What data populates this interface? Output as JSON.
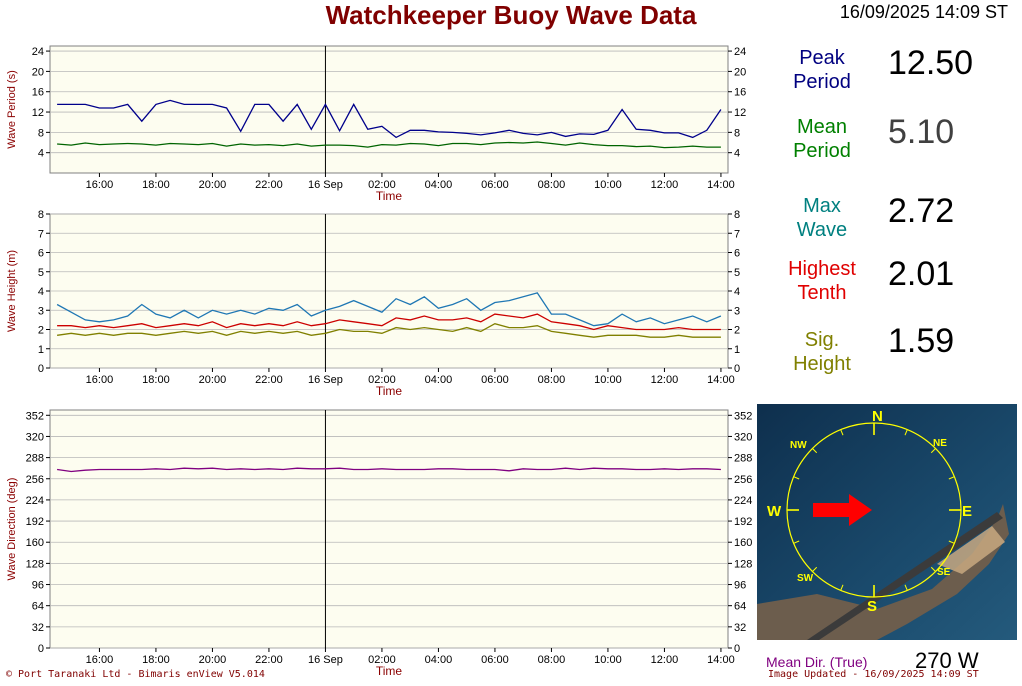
{
  "header": {
    "title": "Watchkeeper Buoy Wave Data",
    "timestamp": "16/09/2025 14:09 ST"
  },
  "stats": [
    {
      "label_line1": "Peak",
      "label_line2": "Period",
      "value": "12.50",
      "color": "#000080"
    },
    {
      "label_line1": "Mean",
      "label_line2": "Period",
      "value": "5.10",
      "color": "#008000"
    },
    {
      "label_line1": "Max",
      "label_line2": "Wave",
      "value": "2.72",
      "color": "#008080"
    },
    {
      "label_line1": "Highest",
      "label_line2": "Tenth",
      "value": "2.01",
      "color": "#e00000"
    },
    {
      "label_line1": "Sig.",
      "label_line2": "Height",
      "value": "1.59",
      "color": "#808000"
    }
  ],
  "compass": {
    "north": "N",
    "south": "S",
    "east": "E",
    "west": "W",
    "ne": "NE",
    "nw": "NW",
    "se": "SE",
    "sw": "SW",
    "arrow_direction_deg": 270,
    "ring_color": "#ffff00",
    "arrow_color": "#ff0000"
  },
  "mean_direction": {
    "label": "Mean Dir. (True)",
    "value": "270 W"
  },
  "footer": {
    "copyright": "© Port Taranaki Ltd - Bimaris enView V5.014",
    "updated": "Image Updated - 16/09/2025 14:09 ST"
  },
  "chart_data": [
    {
      "type": "line",
      "ylabel": "Wave Period (s)",
      "xlabel": "Time",
      "ylim": [
        0,
        25
      ],
      "yticks": [
        4,
        8,
        12,
        16,
        20,
        24
      ],
      "x_tick_labels": [
        "16:00",
        "18:00",
        "20:00",
        "22:00",
        "16 Sep",
        "02:00",
        "04:00",
        "06:00",
        "08:00",
        "10:00",
        "12:00",
        "14:00"
      ],
      "xlim": [
        14.25,
        38.25
      ],
      "x_tick_positions": [
        16,
        18,
        20,
        22,
        24,
        26,
        28,
        30,
        32,
        34,
        36,
        38
      ],
      "day_marker_x": 24,
      "series": [
        {
          "color": "#00008b",
          "x": [
            14.5,
            15,
            15.5,
            16,
            16.5,
            17,
            17.5,
            18,
            18.5,
            19,
            19.5,
            20,
            20.5,
            21,
            21.5,
            22,
            22.5,
            23,
            23.5,
            24,
            24.5,
            25,
            25.5,
            26,
            26.5,
            27,
            27.5,
            28,
            28.5,
            29,
            29.5,
            30,
            30.5,
            31,
            31.5,
            32,
            32.5,
            33,
            33.5,
            34,
            34.5,
            35,
            35.5,
            36,
            36.5,
            37,
            37.5,
            38
          ],
          "values": [
            13.5,
            13.5,
            13.5,
            12.8,
            12.8,
            13.5,
            10.2,
            13.5,
            14.3,
            13.5,
            13.5,
            13.5,
            12.8,
            8.2,
            13.5,
            13.5,
            10.2,
            13.5,
            8.6,
            13.5,
            8.3,
            13.5,
            8.6,
            9.2,
            7.0,
            8.4,
            8.4,
            8.1,
            8.0,
            7.8,
            7.5,
            7.9,
            8.4,
            7.8,
            7.5,
            8.0,
            7.2,
            7.7,
            7.6,
            8.4,
            12.5,
            8.6,
            8.4,
            7.9,
            7.9,
            7.0,
            8.4,
            12.5
          ]
        },
        {
          "color": "#006400",
          "x": [
            14.5,
            15,
            15.5,
            16,
            16.5,
            17,
            17.5,
            18,
            18.5,
            19,
            19.5,
            20,
            20.5,
            21,
            21.5,
            22,
            22.5,
            23,
            23.5,
            24,
            24.5,
            25,
            25.5,
            26,
            26.5,
            27,
            27.5,
            28,
            28.5,
            29,
            29.5,
            30,
            30.5,
            31,
            31.5,
            32,
            32.5,
            33,
            33.5,
            34,
            34.5,
            35,
            35.5,
            36,
            36.5,
            37,
            37.5,
            38
          ],
          "values": [
            5.7,
            5.5,
            5.9,
            5.6,
            5.7,
            5.8,
            5.7,
            5.5,
            5.8,
            5.7,
            5.6,
            5.8,
            5.3,
            5.7,
            5.5,
            5.6,
            5.4,
            5.7,
            5.3,
            5.5,
            5.5,
            5.4,
            5.1,
            5.6,
            5.5,
            5.8,
            5.7,
            5.4,
            5.8,
            5.8,
            5.6,
            5.9,
            6.0,
            5.9,
            6.1,
            5.8,
            5.5,
            5.9,
            5.6,
            5.4,
            5.4,
            5.2,
            5.3,
            5.0,
            5.1,
            5.3,
            5.1,
            5.1
          ]
        }
      ]
    },
    {
      "type": "line",
      "ylabel": "Wave Height (m)",
      "xlabel": "Time",
      "ylim": [
        0,
        8
      ],
      "yticks": [
        0,
        1,
        2,
        3,
        4,
        5,
        6,
        7,
        8
      ],
      "x_tick_labels": [
        "16:00",
        "18:00",
        "20:00",
        "22:00",
        "16 Sep",
        "02:00",
        "04:00",
        "06:00",
        "08:00",
        "10:00",
        "12:00",
        "14:00"
      ],
      "xlim": [
        14.25,
        38.25
      ],
      "x_tick_positions": [
        16,
        18,
        20,
        22,
        24,
        26,
        28,
        30,
        32,
        34,
        36,
        38
      ],
      "day_marker_x": 24,
      "series": [
        {
          "color": "#1f77b4",
          "x": [
            14.5,
            15,
            15.5,
            16,
            16.5,
            17,
            17.5,
            18,
            18.5,
            19,
            19.5,
            20,
            20.5,
            21,
            21.5,
            22,
            22.5,
            23,
            23.5,
            24,
            24.5,
            25,
            25.5,
            26,
            26.5,
            27,
            27.5,
            28,
            28.5,
            29,
            29.5,
            30,
            30.5,
            31,
            31.5,
            32,
            32.5,
            33,
            33.5,
            34,
            34.5,
            35,
            35.5,
            36,
            36.5,
            37,
            37.5,
            38
          ],
          "values": [
            3.3,
            2.9,
            2.5,
            2.4,
            2.5,
            2.7,
            3.3,
            2.8,
            2.6,
            3.0,
            2.6,
            3.0,
            2.8,
            3.0,
            2.8,
            3.1,
            3.0,
            3.3,
            2.7,
            3.0,
            3.2,
            3.5,
            3.2,
            2.9,
            3.6,
            3.3,
            3.7,
            3.1,
            3.3,
            3.6,
            3.0,
            3.4,
            3.5,
            3.7,
            3.9,
            2.8,
            2.8,
            2.5,
            2.2,
            2.3,
            2.8,
            2.4,
            2.6,
            2.3,
            2.5,
            2.7,
            2.4,
            2.7
          ]
        },
        {
          "color": "#cc0000",
          "x": [
            14.5,
            15,
            15.5,
            16,
            16.5,
            17,
            17.5,
            18,
            18.5,
            19,
            19.5,
            20,
            20.5,
            21,
            21.5,
            22,
            22.5,
            23,
            23.5,
            24,
            24.5,
            25,
            25.5,
            26,
            26.5,
            27,
            27.5,
            28,
            28.5,
            29,
            29.5,
            30,
            30.5,
            31,
            31.5,
            32,
            32.5,
            33,
            33.5,
            34,
            34.5,
            35,
            35.5,
            36,
            36.5,
            37,
            37.5,
            38
          ],
          "values": [
            2.2,
            2.2,
            2.1,
            2.2,
            2.1,
            2.2,
            2.3,
            2.1,
            2.2,
            2.3,
            2.2,
            2.4,
            2.1,
            2.3,
            2.2,
            2.3,
            2.2,
            2.4,
            2.2,
            2.3,
            2.5,
            2.4,
            2.3,
            2.2,
            2.6,
            2.5,
            2.7,
            2.5,
            2.5,
            2.6,
            2.4,
            2.8,
            2.7,
            2.6,
            2.8,
            2.4,
            2.3,
            2.2,
            2.0,
            2.2,
            2.1,
            2.0,
            2.0,
            2.0,
            2.1,
            2.0,
            2.0,
            2.0
          ]
        },
        {
          "color": "#808000",
          "x": [
            14.5,
            15,
            15.5,
            16,
            16.5,
            17,
            17.5,
            18,
            18.5,
            19,
            19.5,
            20,
            20.5,
            21,
            21.5,
            22,
            22.5,
            23,
            23.5,
            24,
            24.5,
            25,
            25.5,
            26,
            26.5,
            27,
            27.5,
            28,
            28.5,
            29,
            29.5,
            30,
            30.5,
            31,
            31.5,
            32,
            32.5,
            33,
            33.5,
            34,
            34.5,
            35,
            35.5,
            36,
            36.5,
            37,
            37.5,
            38
          ],
          "values": [
            1.7,
            1.8,
            1.7,
            1.8,
            1.7,
            1.8,
            1.8,
            1.7,
            1.8,
            1.9,
            1.8,
            1.9,
            1.7,
            1.9,
            1.8,
            1.9,
            1.8,
            1.9,
            1.7,
            1.8,
            2.0,
            1.9,
            1.9,
            1.8,
            2.1,
            2.0,
            2.1,
            2.0,
            1.9,
            2.1,
            1.9,
            2.3,
            2.1,
            2.1,
            2.2,
            1.9,
            1.8,
            1.7,
            1.6,
            1.7,
            1.7,
            1.7,
            1.6,
            1.6,
            1.7,
            1.6,
            1.6,
            1.6
          ]
        }
      ]
    },
    {
      "type": "line",
      "ylabel": "Wave Direction (deg)",
      "xlabel": "Time",
      "ylim": [
        0,
        360
      ],
      "yticks": [
        0,
        32,
        64,
        96,
        128,
        160,
        192,
        224,
        256,
        288,
        320,
        352
      ],
      "x_tick_labels": [
        "16:00",
        "18:00",
        "20:00",
        "22:00",
        "16 Sep",
        "02:00",
        "04:00",
        "06:00",
        "08:00",
        "10:00",
        "12:00",
        "14:00"
      ],
      "xlim": [
        14.25,
        38.25
      ],
      "x_tick_positions": [
        16,
        18,
        20,
        22,
        24,
        26,
        28,
        30,
        32,
        34,
        36,
        38
      ],
      "day_marker_x": 24,
      "series": [
        {
          "color": "#800080",
          "x": [
            14.5,
            15,
            15.5,
            16,
            16.5,
            17,
            17.5,
            18,
            18.5,
            19,
            19.5,
            20,
            20.5,
            21,
            21.5,
            22,
            22.5,
            23,
            23.5,
            24,
            24.5,
            25,
            25.5,
            26,
            26.5,
            27,
            27.5,
            28,
            28.5,
            29,
            29.5,
            30,
            30.5,
            31,
            31.5,
            32,
            32.5,
            33,
            33.5,
            34,
            34.5,
            35,
            35.5,
            36,
            36.5,
            37,
            37.5,
            38
          ],
          "values": [
            270,
            267,
            269,
            270,
            270,
            270,
            270,
            271,
            270,
            272,
            271,
            272,
            270,
            271,
            270,
            271,
            270,
            272,
            271,
            271,
            272,
            270,
            270,
            271,
            270,
            270,
            270,
            271,
            271,
            270,
            270,
            270,
            268,
            271,
            270,
            270,
            272,
            270,
            272,
            271,
            271,
            270,
            270,
            271,
            270,
            271,
            271,
            270
          ]
        }
      ]
    }
  ]
}
